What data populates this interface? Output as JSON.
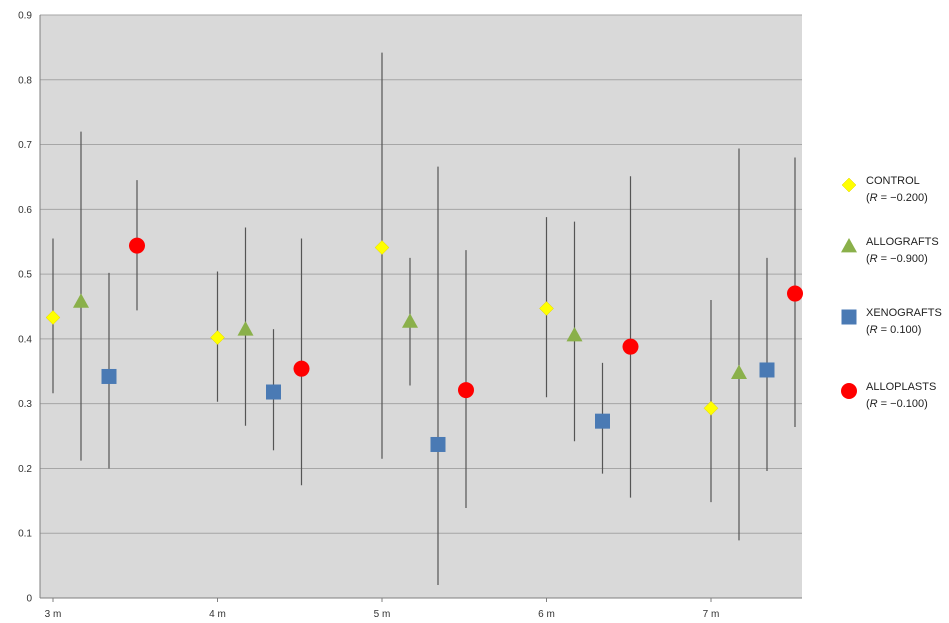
{
  "chart_data": {
    "type": "scatter",
    "categories": [
      "3 m",
      "4 m",
      "5 m",
      "6 m",
      "7 m"
    ],
    "ylim": [
      0,
      0.9
    ],
    "yticks": [
      "0",
      "0.1",
      "0.2",
      "0.3",
      "0.4",
      "0.5",
      "0.6",
      "0.7",
      "0.8",
      "0.9"
    ],
    "grid": true,
    "legend_position": "right",
    "series": [
      {
        "name": "CONTROL",
        "r_label": "(R = −0.200)",
        "r_prefix": "(",
        "r_var": "R",
        "r_value": " = −0.200)",
        "marker": "diamond",
        "color": "#ffff00",
        "values": [
          0.433,
          0.402,
          0.541,
          0.447,
          0.293
        ],
        "error_low": [
          0.316,
          0.303,
          0.215,
          0.31,
          0.148
        ],
        "error_high": [
          0.555,
          0.504,
          0.842,
          0.588,
          0.46
        ]
      },
      {
        "name": "ALLOGRAFTS",
        "r_label": "(R = −0.900)",
        "r_prefix": "(",
        "r_var": "R",
        "r_value": " = −0.900)",
        "marker": "triangle",
        "color": "#8ab04a",
        "values": [
          0.458,
          0.415,
          0.427,
          0.406,
          0.348
        ],
        "error_low": [
          0.212,
          0.266,
          0.328,
          0.242,
          0.089
        ],
        "error_high": [
          0.72,
          0.572,
          0.525,
          0.581,
          0.694
        ]
      },
      {
        "name": "XENOGRAFTS",
        "r_label": "(R = 0.100)",
        "r_prefix": "(",
        "r_var": "R",
        "r_value": " = 0.100)",
        "marker": "square",
        "color": "#4a7ab4",
        "values": [
          0.342,
          0.318,
          0.237,
          0.273,
          0.352
        ],
        "error_low": [
          0.2,
          0.228,
          0.02,
          0.192,
          0.196
        ],
        "error_high": [
          0.502,
          0.415,
          0.666,
          0.363,
          0.525
        ]
      },
      {
        "name": "ALLOPLASTS",
        "r_label": "(R = −0.100)",
        "r_prefix": "(",
        "r_var": "R",
        "r_value": " = −0.100)",
        "marker": "circle",
        "color": "#ff0000",
        "values": [
          0.544,
          0.354,
          0.321,
          0.388,
          0.47
        ],
        "error_low": [
          0.444,
          0.174,
          0.139,
          0.155,
          0.264
        ],
        "error_high": [
          0.645,
          0.555,
          0.537,
          0.651,
          0.68
        ]
      }
    ]
  }
}
